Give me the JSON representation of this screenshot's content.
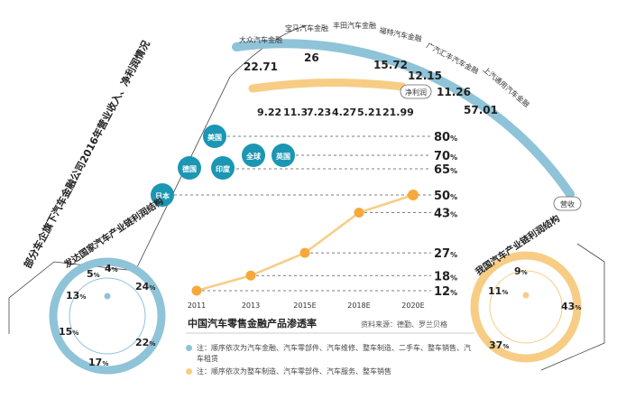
{
  "colors": {
    "blue": "#8fc3d8",
    "blue_dark": "#1b96b3",
    "orange": "#f7cd85",
    "orange_dark": "#f6a93a",
    "dash": "#555555"
  },
  "arc": {
    "section_title": "部分车企旗下汽车金融公司2016年营业收入、净利润情况",
    "companies": [
      "大众汽车金融",
      "宝马汽车金融",
      "丰田汽车金融",
      "福特汽车金融",
      "广汽汇丰汽车金融",
      "上汽通用汽车金融"
    ],
    "revenue_values": [
      "22.71",
      "26",
      "15.72",
      "12.15",
      "11.26",
      "57.01"
    ],
    "profit_values": [
      "9.22",
      "11.3",
      "7.23",
      "4.27",
      "5.21",
      "21.99"
    ],
    "revenue_label": "营收",
    "profit_label": "净利润"
  },
  "countries": {
    "bubbles": [
      "美国",
      "德国",
      "印度",
      "全球",
      "英国",
      "日本"
    ],
    "levels": [
      "80",
      "70",
      "65",
      "50"
    ],
    "unit": "%"
  },
  "chart_data": {
    "type": "line",
    "title": "中国汽车零售金融产品渗透率",
    "source": "资料来源：德勤、罗兰贝格",
    "categories": [
      "2011",
      "2013",
      "2015E",
      "2018E",
      "2020E"
    ],
    "values": [
      12,
      18,
      27,
      43,
      50
    ],
    "unit": "%",
    "ylim": [
      12,
      50
    ]
  },
  "donut_dev": {
    "title": "发达国家汽车产业链利润结构",
    "values": [
      "4",
      "24",
      "22",
      "17",
      "15",
      "13",
      "5"
    ],
    "unit": "%"
  },
  "donut_cn": {
    "title": "我国汽车产业链利润结构",
    "values": [
      "9",
      "43",
      "37",
      "11"
    ],
    "unit": "%"
  },
  "legend": {
    "blue_note": "注：顺序依次为汽车金融、汽车零部件、汽车维修、整车制造、二手车、整车销售、汽车租赁",
    "orange_note": "注：顺序依次为整车制造、汽车零部件、汽车服务、整车销售"
  }
}
